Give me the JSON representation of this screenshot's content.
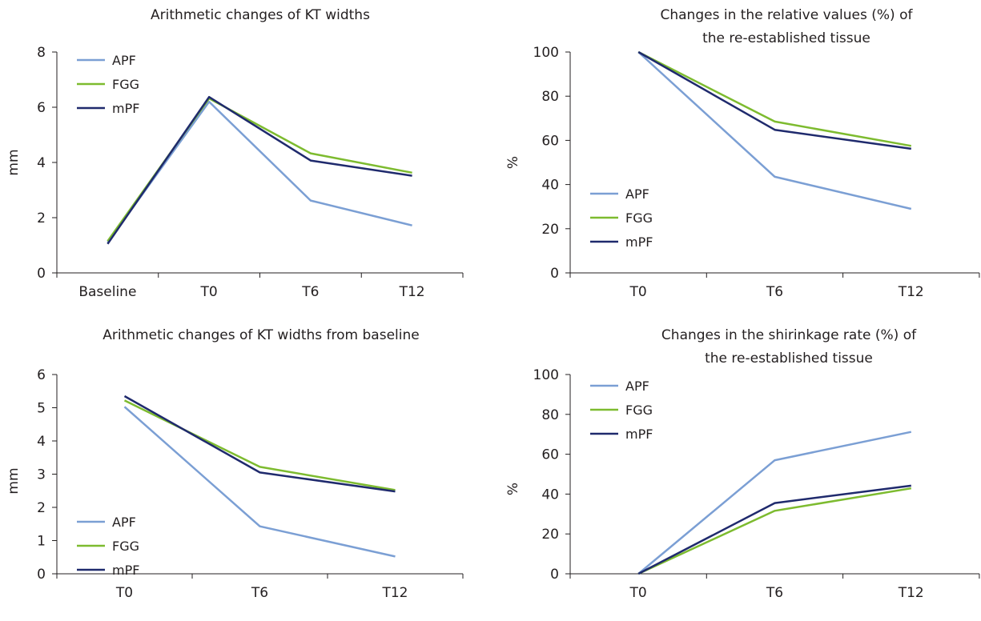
{
  "colors": {
    "APF": "#7b9fd4",
    "FGG": "#7dbb2f",
    "mPF": "#1f2a6d",
    "axis": "#231f20"
  },
  "chart_data": [
    {
      "type": "line",
      "title": [
        "Arithmetic changes of KT widths"
      ],
      "xlabel": "",
      "ylabel": "mm",
      "categories": [
        "Baseline",
        "T0",
        "T6",
        "T12"
      ],
      "ylim": [
        0,
        8
      ],
      "yticks": [
        "0",
        "2",
        "4",
        "6",
        "8"
      ],
      "legend_position": "top-left",
      "series": [
        {
          "name": "APF",
          "values": [
            1.1,
            6.2,
            2.62,
            1.72
          ]
        },
        {
          "name": "FGG",
          "values": [
            1.15,
            6.32,
            4.33,
            3.63
          ]
        },
        {
          "name": "mPF",
          "values": [
            1.05,
            6.37,
            4.07,
            3.52
          ]
        }
      ]
    },
    {
      "type": "line",
      "title": [
        "Changes in the relative values (%) of",
        "the re-established tissue"
      ],
      "xlabel": "",
      "ylabel": "%",
      "categories": [
        "T0",
        "T6",
        "T12"
      ],
      "ylim": [
        0,
        100
      ],
      "yticks": [
        "0",
        "20",
        "40",
        "60",
        "80",
        "100"
      ],
      "legend_position": "bottom-left",
      "series": [
        {
          "name": "APF",
          "values": [
            100,
            43.5,
            29
          ]
        },
        {
          "name": "FGG",
          "values": [
            100,
            68.5,
            57.5
          ]
        },
        {
          "name": "mPF",
          "values": [
            100,
            64.8,
            56.2
          ]
        }
      ]
    },
    {
      "type": "line",
      "title": [
        "Arithmetic changes of KT widths from baseline"
      ],
      "xlabel": "",
      "ylabel": "mm",
      "categories": [
        "T0",
        "T6",
        "T12"
      ],
      "ylim": [
        0,
        6
      ],
      "yticks": [
        "0",
        "1",
        "2",
        "3",
        "4",
        "5",
        "6"
      ],
      "legend_position": "bottom-left",
      "series": [
        {
          "name": "APF",
          "values": [
            5.03,
            1.43,
            0.52
          ]
        },
        {
          "name": "FGG",
          "values": [
            5.22,
            3.22,
            2.52
          ]
        },
        {
          "name": "mPF",
          "values": [
            5.35,
            3.05,
            2.48
          ]
        }
      ]
    },
    {
      "type": "line",
      "title": [
        "Changes in the shirinkage rate (%) of",
        "the re-established tissue"
      ],
      "xlabel": "",
      "ylabel": "%",
      "categories": [
        "T0",
        "T6",
        "T12"
      ],
      "ylim": [
        0,
        100
      ],
      "yticks": [
        "0",
        "20",
        "40",
        "60",
        "80",
        "100"
      ],
      "legend_position": "top-left",
      "series": [
        {
          "name": "APF",
          "values": [
            0,
            57,
            71.2
          ]
        },
        {
          "name": "FGG",
          "values": [
            0,
            31.6,
            42.9
          ]
        },
        {
          "name": "mPF",
          "values": [
            0,
            35.5,
            44.2
          ]
        }
      ]
    }
  ]
}
